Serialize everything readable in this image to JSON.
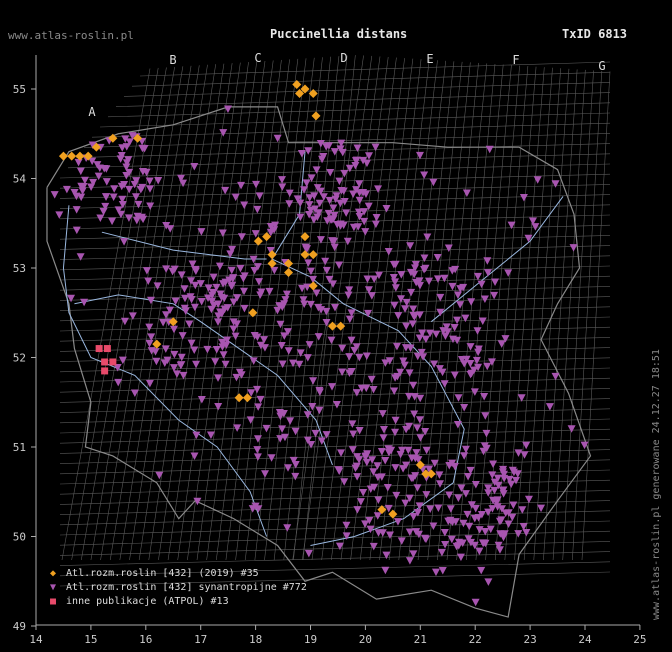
{
  "header": {
    "site": "www.atlas-roslin.pl",
    "title": "Puccinellia distans",
    "taxid": "TxID 6813"
  },
  "side_text": "www.atlas-roslin.pl generowane 24.12.27 18:51",
  "axes": {
    "x_ticks": [
      "14",
      "15",
      "16",
      "17",
      "18",
      "19",
      "20",
      "21",
      "22",
      "23",
      "24",
      "25"
    ],
    "y_ticks": [
      "55",
      "54",
      "53",
      "52",
      "51",
      "50",
      "49"
    ]
  },
  "grid_letters": [
    "A",
    "B",
    "C",
    "D",
    "E",
    "F",
    "G"
  ],
  "legend": [
    {
      "label": "Atl.rozm.roslin [432] (2019) #35",
      "color": "#f0a020",
      "icon": "diamond-icon"
    },
    {
      "label": "Atl.rozm.roslin [432] synantropijne #772",
      "color": "#a855b0",
      "icon": "triangle-down-icon"
    },
    {
      "label": "inne publikacje (ATPOL) #13",
      "color": "#e84a6a",
      "icon": "square-icon"
    }
  ],
  "colors": {
    "grid": "#5a5a5a",
    "border": "#8a8a8a",
    "river": "#9ab8e0",
    "synanthropic": "#a855b0",
    "recent": "#f0a020",
    "atpol": "#e84a6a"
  },
  "map_data": {
    "diamonds": [
      [
        14.5,
        54.25
      ],
      [
        14.65,
        54.25
      ],
      [
        14.8,
        54.25
      ],
      [
        14.95,
        54.25
      ],
      [
        15.1,
        54.35
      ],
      [
        15.4,
        54.45
      ],
      [
        15.85,
        54.45
      ],
      [
        18.75,
        55.05
      ],
      [
        18.8,
        54.95
      ],
      [
        18.9,
        55.0
      ],
      [
        19.05,
        54.95
      ],
      [
        19.1,
        54.7
      ],
      [
        18.2,
        53.35
      ],
      [
        18.05,
        53.3
      ],
      [
        18.3,
        53.15
      ],
      [
        18.3,
        53.05
      ],
      [
        18.6,
        53.05
      ],
      [
        18.6,
        52.95
      ],
      [
        18.9,
        53.15
      ],
      [
        19.05,
        53.15
      ],
      [
        18.9,
        53.35
      ],
      [
        19.05,
        52.8
      ],
      [
        17.95,
        52.5
      ],
      [
        16.5,
        52.4
      ],
      [
        16.2,
        52.15
      ],
      [
        19.4,
        52.35
      ],
      [
        19.55,
        52.35
      ],
      [
        17.7,
        51.55
      ],
      [
        17.85,
        51.55
      ],
      [
        21.0,
        50.8
      ],
      [
        21.1,
        50.7
      ],
      [
        21.2,
        50.7
      ],
      [
        20.3,
        50.3
      ],
      [
        20.5,
        50.25
      ]
    ],
    "squares": [
      [
        15.15,
        52.1
      ],
      [
        15.3,
        52.1
      ],
      [
        15.25,
        51.95
      ],
      [
        15.4,
        51.95
      ],
      [
        15.25,
        51.85
      ]
    ],
    "triangle_count": 772
  }
}
